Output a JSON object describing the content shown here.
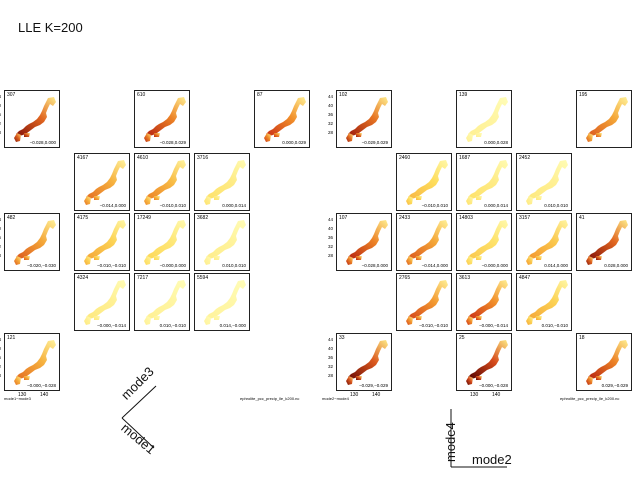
{
  "title": "LLE K=200",
  "y_ticks": [
    "44",
    "40",
    "36",
    "32",
    "28"
  ],
  "x_ticks": [
    "130",
    "140"
  ],
  "left_grid": {
    "caption_left": "mode1−mode3",
    "caption_right": "ephrolite_pcc_precip_lle_k200.nc",
    "panels": [
      {
        "id": "307",
        "coord": "−0.028,0.000",
        "intensity": 0.85
      },
      {
        "id": "610",
        "coord": "−0.028,0.029",
        "intensity": 0.75
      },
      {
        "id": "87",
        "coord": "0.000,0.029",
        "intensity": 0.7
      },
      {
        "id": "4167",
        "coord": "−0.014,0.000",
        "intensity": 0.55
      },
      {
        "id": "4610",
        "coord": "−0.010,0.010",
        "intensity": 0.5
      },
      {
        "id": "3716",
        "coord": "0.000,0.014",
        "intensity": 0.2
      },
      {
        "id": "482",
        "coord": "−0.020,−0.030",
        "intensity": 0.6
      },
      {
        "id": "4175",
        "coord": "−0.010,−0.010",
        "intensity": 0.4
      },
      {
        "id": "17249",
        "coord": "−0.000,0.000",
        "intensity": 0.25
      },
      {
        "id": "3682",
        "coord": "0.010,0.010",
        "intensity": 0.12
      },
      {
        "id": "4324",
        "coord": "−0.000,−0.014",
        "intensity": 0.15
      },
      {
        "id": "7217",
        "coord": "0.010,−0.010",
        "intensity": 0.1
      },
      {
        "id": "5594",
        "coord": "0.014,−0.000",
        "intensity": 0.08
      },
      {
        "id": "121",
        "coord": "−0.000,−0.028",
        "intensity": 0.55
      }
    ]
  },
  "right_grid": {
    "caption_left": "mode2−mode4",
    "caption_right": "ephrolite_pcc_precip_lle_k200.nc",
    "panels": [
      {
        "id": "102",
        "coord": "−0.029,0.029",
        "intensity": 0.8
      },
      {
        "id": "139",
        "coord": "0.000,0.028",
        "intensity": 0.1
      },
      {
        "id": "195",
        "coord": "",
        "intensity": 0.6
      },
      {
        "id": "2460",
        "coord": "−0.010,0.010",
        "intensity": 0.35
      },
      {
        "id": "1687",
        "coord": "0.000,0.014",
        "intensity": 0.2
      },
      {
        "id": "2452",
        "coord": "0.010,0.010",
        "intensity": 0.15
      },
      {
        "id": "107",
        "coord": "−0.028,0.000",
        "intensity": 0.75
      },
      {
        "id": "2433",
        "coord": "−0.014,0.000",
        "intensity": 0.6
      },
      {
        "id": "14803",
        "coord": "−0.000,0.000",
        "intensity": 0.3
      },
      {
        "id": "3157",
        "coord": "0.014,0.000",
        "intensity": 0.45
      },
      {
        "id": "41",
        "coord": "0.028,0.000",
        "intensity": 0.85
      },
      {
        "id": "2765",
        "coord": "−0.010,−0.010",
        "intensity": 0.65
      },
      {
        "id": "3613",
        "coord": "−0.000,−0.014",
        "intensity": 0.7
      },
      {
        "id": "4847",
        "coord": "0.010,−0.010",
        "intensity": 0.4
      },
      {
        "id": "33",
        "coord": "−0.029,−0.029",
        "intensity": 0.9
      },
      {
        "id": "25",
        "coord": "−0.000,−0.028",
        "intensity": 0.95
      },
      {
        "id": "18",
        "coord": "0.029,−0.029",
        "intensity": 0.75
      }
    ]
  },
  "left_indicator": {
    "x_label": "mode1",
    "y_label": "mode3"
  },
  "right_indicator": {
    "x_label": "mode2",
    "y_label": "mode4"
  }
}
